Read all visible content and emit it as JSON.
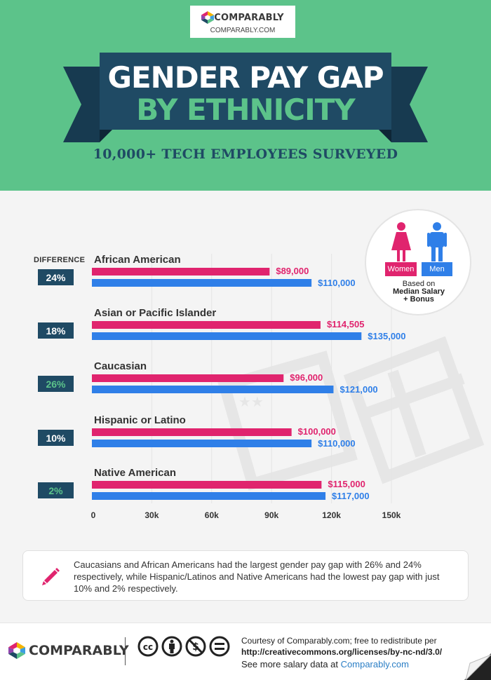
{
  "header": {
    "logo_text": "COMPARABLY",
    "logo_url": "COMPARABLY.COM",
    "title_line1": "GENDER PAY GAP",
    "title_line2": "BY ETHNICITY",
    "subtitle": "10,000+ TECH EMPLOYEES SURVEYED"
  },
  "colors": {
    "women": "#e0246e",
    "men": "#2f7fe8",
    "header_bg": "#5cc38a",
    "banner": "#1f4a64",
    "diff_box": "#1f4a64",
    "diff_text_default": "#ffffff",
    "diff_text_highlight": "#5cc38a"
  },
  "legend": {
    "women_label": "Women",
    "men_label": "Men",
    "note_line1": "Based on",
    "note_line2": "Median Salary",
    "note_line3": "+ Bonus"
  },
  "difference_header": "DIFFERENCE",
  "chart_data": {
    "type": "bar",
    "orientation": "horizontal",
    "categories": [
      "African American",
      "Asian or Pacific Islander",
      "Caucasian",
      "Hispanic or Latino",
      "Native American"
    ],
    "series": [
      {
        "name": "Women",
        "values": [
          89000,
          114505,
          96000,
          100000,
          115000
        ],
        "labels": [
          "$89,000",
          "$114,505",
          "$96,000",
          "$100,000",
          "$115,000"
        ]
      },
      {
        "name": "Men",
        "values": [
          110000,
          135000,
          121000,
          110000,
          117000
        ],
        "labels": [
          "$110,000",
          "$135,000",
          "$121,000",
          "$110,000",
          "$117,000"
        ]
      }
    ],
    "differences": [
      "24%",
      "18%",
      "26%",
      "10%",
      "2%"
    ],
    "highlighted_differences": [
      2,
      4
    ],
    "xticks": [
      "0",
      "30k",
      "60k",
      "90k",
      "120k",
      "150k"
    ],
    "xtick_values": [
      0,
      30000,
      60000,
      90000,
      120000,
      150000
    ],
    "xlim": [
      0,
      150000
    ],
    "grid": true
  },
  "note": {
    "text": "Caucasians and African Americans had the largest gender pay gap with 26% and 24% respectively, while Hispanic/Latinos and Native Americans had the lowest pay gap with just 10% and 2% respectively."
  },
  "footer": {
    "logo_text": "COMPARABLY",
    "credit_line1": "Courtesy of Comparably.com; free to redistribute per",
    "credit_line2": "http://creativecommons.org/licenses/by-nc-nd/3.0/",
    "credit_line3_prefix": "See more salary data at ",
    "credit_line3_link": "Comparably.com"
  }
}
